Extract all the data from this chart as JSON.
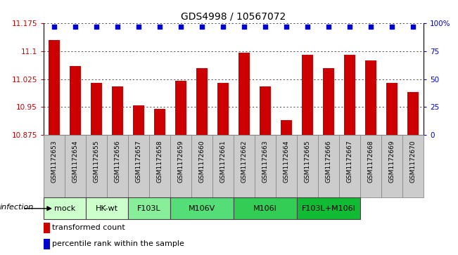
{
  "title": "GDS4998 / 10567072",
  "samples": [
    "GSM1172653",
    "GSM1172654",
    "GSM1172655",
    "GSM1172656",
    "GSM1172657",
    "GSM1172658",
    "GSM1172659",
    "GSM1172660",
    "GSM1172661",
    "GSM1172662",
    "GSM1172663",
    "GSM1172664",
    "GSM1172665",
    "GSM1172666",
    "GSM1172667",
    "GSM1172668",
    "GSM1172669",
    "GSM1172670"
  ],
  "bar_values": [
    11.13,
    11.06,
    11.015,
    11.005,
    10.955,
    10.945,
    11.02,
    11.055,
    11.015,
    11.095,
    11.005,
    10.915,
    11.09,
    11.055,
    11.09,
    11.075,
    11.015,
    10.99
  ],
  "ymin": 10.875,
  "ymax": 11.175,
  "yticks": [
    10.875,
    10.95,
    11.025,
    11.1,
    11.175
  ],
  "right_yticks": [
    0,
    25,
    50,
    75,
    100
  ],
  "bar_color": "#cc0000",
  "dot_color": "#0000cc",
  "groups": [
    {
      "start": 0,
      "end": 1,
      "label": "mock",
      "color": "#ccffcc"
    },
    {
      "start": 2,
      "end": 3,
      "label": "HK-wt",
      "color": "#ccffcc"
    },
    {
      "start": 4,
      "end": 5,
      "label": "F103L",
      "color": "#88ee99"
    },
    {
      "start": 6,
      "end": 8,
      "label": "M106V",
      "color": "#55dd77"
    },
    {
      "start": 9,
      "end": 11,
      "label": "M106I",
      "color": "#33cc55"
    },
    {
      "start": 12,
      "end": 14,
      "label": "F103L+M106I",
      "color": "#11bb33"
    }
  ],
  "sample_box_color": "#cccccc",
  "infection_label": "infection",
  "legend_bar_label": "transformed count",
  "legend_dot_label": "percentile rank within the sample",
  "title_fontsize": 10,
  "tick_fontsize": 7.5,
  "sample_fontsize": 6.5,
  "group_fontsize": 8
}
